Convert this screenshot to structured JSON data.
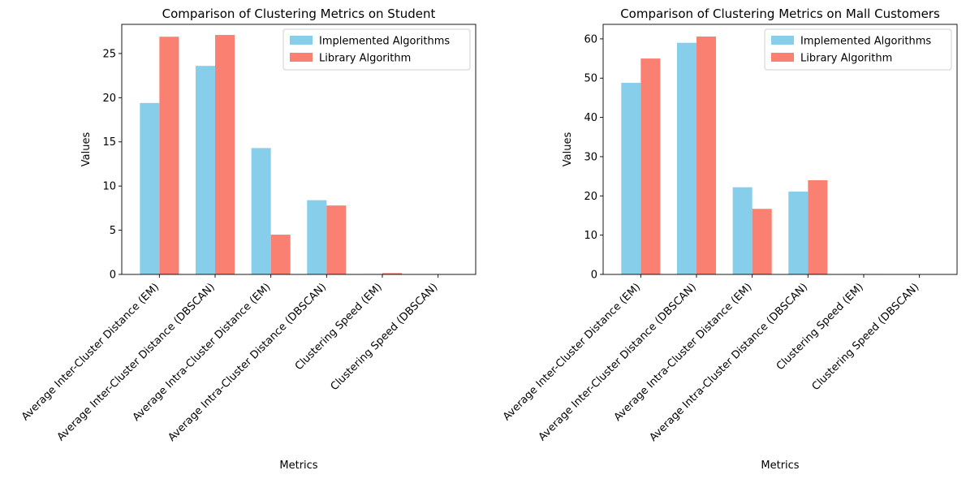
{
  "chart_data": [
    {
      "type": "bar",
      "title": "Comparison of Clustering Metrics on Student",
      "xlabel": "Metrics",
      "ylabel": "Values",
      "ylim": [
        0,
        28.3
      ],
      "yticks": [
        0,
        5,
        10,
        15,
        20,
        25
      ],
      "categories": [
        "Average Inter-Cluster Distance (EM)",
        "Average Inter-Cluster Distance (DBSCAN)",
        "Average Intra-Cluster Distance (EM)",
        "Average Intra-Cluster Distance (DBSCAN)",
        "Clustering Speed (EM)",
        "Clustering Speed (DBSCAN)"
      ],
      "series": [
        {
          "name": "Implemented Algorithms",
          "color": "#87CEEB",
          "values": [
            19.4,
            23.6,
            14.3,
            8.4,
            0.05,
            0.01
          ]
        },
        {
          "name": "Library Algorithm",
          "color": "#FA8072",
          "values": [
            26.9,
            27.1,
            4.5,
            7.8,
            0.15,
            0.01
          ]
        }
      ],
      "legend": "top-right",
      "grid": false
    },
    {
      "type": "bar",
      "title": "Comparison of Clustering Metrics on Mall Customers",
      "xlabel": "Metrics",
      "ylabel": "Values",
      "ylim": [
        0,
        63.7
      ],
      "yticks": [
        0,
        10,
        20,
        30,
        40,
        50,
        60
      ],
      "categories": [
        "Average Inter-Cluster Distance (EM)",
        "Average Inter-Cluster Distance (DBSCAN)",
        "Average Intra-Cluster Distance (EM)",
        "Average Intra-Cluster Distance (DBSCAN)",
        "Clustering Speed (EM)",
        "Clustering Speed (DBSCAN)"
      ],
      "series": [
        {
          "name": "Implemented Algorithms",
          "color": "#87CEEB",
          "values": [
            48.8,
            59.0,
            22.2,
            21.1,
            0.1,
            0.01
          ]
        },
        {
          "name": "Library Algorithm",
          "color": "#FA8072",
          "values": [
            55.0,
            60.6,
            16.7,
            24.0,
            0.1,
            0.01
          ]
        }
      ],
      "legend": "top-right",
      "grid": false
    }
  ]
}
